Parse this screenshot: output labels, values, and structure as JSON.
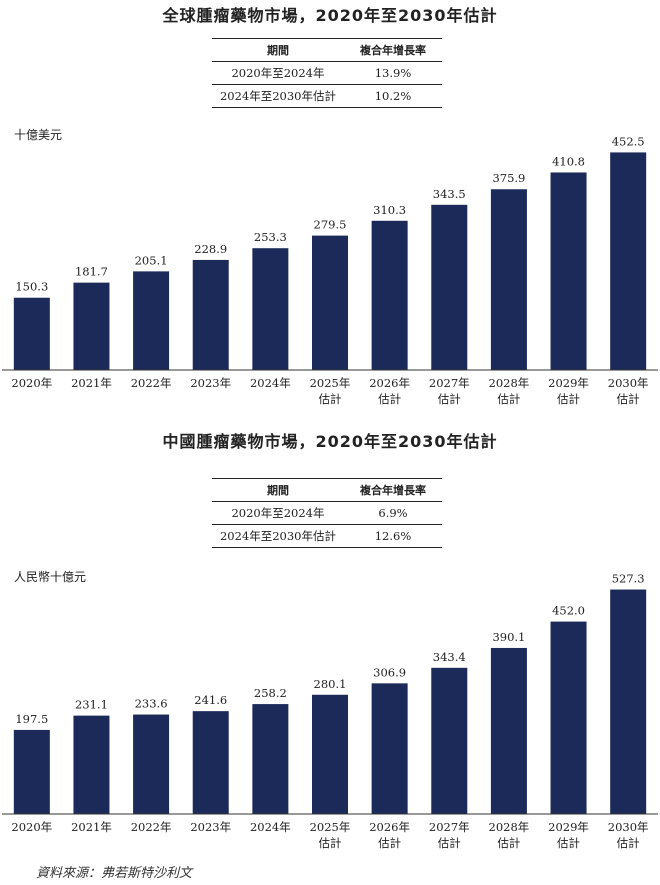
{
  "chart_data": [
    {
      "type": "bar",
      "title": "全球腫瘤藥物市場，2020年至2030年估計",
      "ylabel": "十億美元",
      "categories": [
        "2020年",
        "2021年",
        "2022年",
        "2023年",
        "2024年",
        "2025年估計",
        "2026年估計",
        "2027年估計",
        "2028年估計",
        "2029年估計",
        "2030年估計"
      ],
      "category_lines": [
        [
          "2020年"
        ],
        [
          "2021年"
        ],
        [
          "2022年"
        ],
        [
          "2023年"
        ],
        [
          "2024年"
        ],
        [
          "2025年",
          "估計"
        ],
        [
          "2026年",
          "估計"
        ],
        [
          "2027年",
          "估計"
        ],
        [
          "2028年",
          "估計"
        ],
        [
          "2029年",
          "估計"
        ],
        [
          "2030年",
          "估計"
        ]
      ],
      "values": [
        150.3,
        181.7,
        205.1,
        228.9,
        253.3,
        279.5,
        310.3,
        343.5,
        375.9,
        410.8,
        452.5
      ],
      "value_labels": [
        "150.3",
        "181.7",
        "205.1",
        "228.9",
        "253.3",
        "279.5",
        "310.3",
        "343.5",
        "375.9",
        "410.8",
        "452.5"
      ],
      "ylim": [
        0,
        470
      ],
      "grid": false,
      "color": "#1c2a5a",
      "cagr_table": {
        "headers": [
          "期間",
          "複合年增長率"
        ],
        "rows": [
          [
            "2020年至2024年",
            "13.9%"
          ],
          [
            "2024年至2030年估計",
            "10.2%"
          ]
        ]
      }
    },
    {
      "type": "bar",
      "title": "中國腫瘤藥物市場，2020年至2030年估計",
      "ylabel": "人民幣十億元",
      "categories": [
        "2020年",
        "2021年",
        "2022年",
        "2023年",
        "2024年",
        "2025年估計",
        "2026年估計",
        "2027年估計",
        "2028年估計",
        "2029年估計",
        "2030年估計"
      ],
      "category_lines": [
        [
          "2020年"
        ],
        [
          "2021年"
        ],
        [
          "2022年"
        ],
        [
          "2023年"
        ],
        [
          "2024年"
        ],
        [
          "2025年",
          "估計"
        ],
        [
          "2026年",
          "估計"
        ],
        [
          "2027年",
          "估計"
        ],
        [
          "2028年",
          "估計"
        ],
        [
          "2029年",
          "估計"
        ],
        [
          "2030年",
          "估計"
        ]
      ],
      "values": [
        197.5,
        231.1,
        233.6,
        241.6,
        258.2,
        280.1,
        306.9,
        343.4,
        390.1,
        452.0,
        527.3
      ],
      "value_labels": [
        "197.5",
        "231.1",
        "233.6",
        "241.6",
        "258.2",
        "280.1",
        "306.9",
        "343.4",
        "390.1",
        "452.0",
        "527.3"
      ],
      "ylim": [
        0,
        545
      ],
      "grid": false,
      "color": "#1c2a5a",
      "cagr_table": {
        "headers": [
          "期間",
          "複合年增長率"
        ],
        "rows": [
          [
            "2020年至2024年",
            "6.9%"
          ],
          [
            "2024年至2030年估計",
            "12.6%"
          ]
        ]
      }
    }
  ],
  "source": "資料來源：弗若斯特沙利文"
}
